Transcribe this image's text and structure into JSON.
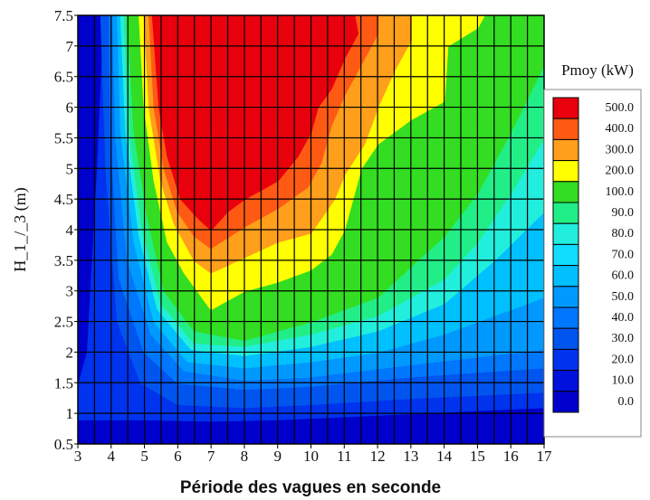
{
  "chart_data": {
    "type": "heatmap",
    "title": "",
    "xlabel": "Période des vagues en seconde",
    "ylabel": "H_1_/_3 (m)",
    "x_ticks": [
      3,
      4,
      5,
      6,
      7,
      8,
      9,
      10,
      11,
      12,
      13,
      14,
      15,
      16,
      17
    ],
    "y_ticks": [
      "0.5",
      "1",
      "1.5",
      "2",
      "2.5",
      "3",
      "3.5",
      "4",
      "4.5",
      "5",
      "5.5",
      "6",
      "6.5",
      "7",
      "7.5"
    ],
    "xlim": [
      3,
      17
    ],
    "ylim": [
      0.5,
      7.5
    ],
    "grid": true,
    "legend": {
      "title": "Pmoy (kW)",
      "placement": "right",
      "levels": [
        "500.0",
        "400.0",
        "300.0",
        "200.0",
        "100.0",
        "90.0",
        "80.0",
        "70.0",
        "60.0",
        "50.0",
        "40.0",
        "30.0",
        "20.0",
        "10.0",
        "0.0"
      ],
      "colors": [
        "#e8000c",
        "#ff5a14",
        "#ff9f1c",
        "#ffff00",
        "#33dd22",
        "#22ee88",
        "#22eedd",
        "#11ddff",
        "#00c0ff",
        "#0099ff",
        "#0077ff",
        "#0055ee",
        "#0033ee",
        "#0011dd",
        "#0000cc"
      ]
    },
    "contours": [
      {
        "level": "10.0",
        "color": "#0033ee",
        "points": [
          [
            3.0,
            0.9
          ],
          [
            5.0,
            0.9
          ],
          [
            7.0,
            0.88
          ],
          [
            9.0,
            0.9
          ],
          [
            11.0,
            0.95
          ],
          [
            13.0,
            1.0
          ],
          [
            15.0,
            1.05
          ],
          [
            17.0,
            1.1
          ],
          [
            17.0,
            7.5
          ],
          [
            3.8,
            7.5
          ],
          [
            3.6,
            5.0
          ],
          [
            3.3,
            2.0
          ],
          [
            3.0,
            1.4
          ]
        ]
      },
      {
        "level": "20.0",
        "color": "#0055ee",
        "points": [
          [
            3.7,
            7.5
          ],
          [
            3.85,
            5.0
          ],
          [
            4.2,
            2.5
          ],
          [
            4.9,
            1.5
          ],
          [
            6.0,
            1.15
          ],
          [
            8.0,
            1.1
          ],
          [
            10.0,
            1.15
          ],
          [
            13.0,
            1.25
          ],
          [
            17.0,
            1.35
          ],
          [
            17.0,
            7.5
          ]
        ]
      },
      {
        "level": "30.0",
        "color": "#0077ff",
        "points": [
          [
            3.95,
            7.5
          ],
          [
            4.0,
            5.5
          ],
          [
            4.25,
            3.2
          ],
          [
            5.0,
            2.0
          ],
          [
            6.0,
            1.5
          ],
          [
            8.0,
            1.4
          ],
          [
            10.0,
            1.45
          ],
          [
            13.0,
            1.6
          ],
          [
            17.0,
            1.75
          ],
          [
            17.0,
            7.5
          ]
        ]
      },
      {
        "level": "40.0",
        "color": "#0099ff",
        "points": [
          [
            4.05,
            7.5
          ],
          [
            4.15,
            5.5
          ],
          [
            4.5,
            3.5
          ],
          [
            5.2,
            2.3
          ],
          [
            6.2,
            1.7
          ],
          [
            8.0,
            1.55
          ],
          [
            10.0,
            1.6
          ],
          [
            13.0,
            1.8
          ],
          [
            17.0,
            2.05
          ],
          [
            17.0,
            7.5
          ]
        ]
      },
      {
        "level": "60.0",
        "color": "#00c0ff",
        "points": [
          [
            4.2,
            7.5
          ],
          [
            4.3,
            5.6
          ],
          [
            4.7,
            3.8
          ],
          [
            5.3,
            2.5
          ],
          [
            6.3,
            1.85
          ],
          [
            8.0,
            1.75
          ],
          [
            10.0,
            1.85
          ],
          [
            12.0,
            2.0
          ],
          [
            14.0,
            2.3
          ],
          [
            17.0,
            2.9
          ],
          [
            17.0,
            7.5
          ]
        ]
      },
      {
        "level": "80.0",
        "color": "#22eedd",
        "points": [
          [
            4.3,
            7.5
          ],
          [
            4.45,
            5.6
          ],
          [
            4.85,
            3.9
          ],
          [
            5.4,
            2.7
          ],
          [
            6.4,
            2.05
          ],
          [
            8.0,
            1.95
          ],
          [
            10.0,
            2.1
          ],
          [
            12.0,
            2.35
          ],
          [
            14.0,
            2.8
          ],
          [
            15.5,
            3.5
          ],
          [
            17.0,
            4.3
          ],
          [
            17.0,
            7.5
          ]
        ]
      },
      {
        "level": "90.0",
        "color": "#22ee88",
        "points": [
          [
            4.4,
            7.5
          ],
          [
            4.55,
            5.6
          ],
          [
            4.95,
            4.0
          ],
          [
            5.5,
            2.8
          ],
          [
            6.5,
            2.15
          ],
          [
            8.0,
            2.1
          ],
          [
            10.0,
            2.3
          ],
          [
            12.0,
            2.6
          ],
          [
            14.0,
            3.2
          ],
          [
            15.0,
            3.8
          ],
          [
            16.0,
            4.6
          ],
          [
            17.0,
            5.5
          ],
          [
            17.0,
            7.5
          ]
        ]
      },
      {
        "level": "100.0",
        "color": "#33dd22",
        "points": [
          [
            4.5,
            7.5
          ],
          [
            4.7,
            5.6
          ],
          [
            5.1,
            4.2
          ],
          [
            5.6,
            3.0
          ],
          [
            6.5,
            2.35
          ],
          [
            8.0,
            2.2
          ],
          [
            9.0,
            2.35
          ],
          [
            10.0,
            2.5
          ],
          [
            11.0,
            2.7
          ],
          [
            12.0,
            2.9
          ],
          [
            13.0,
            3.4
          ],
          [
            14.0,
            3.9
          ],
          [
            15.0,
            4.6
          ],
          [
            16.0,
            5.6
          ],
          [
            17.0,
            6.7
          ],
          [
            17.0,
            7.5
          ]
        ]
      },
      {
        "level": "200.0",
        "color": "#ffff00",
        "points": [
          [
            4.85,
            7.5
          ],
          [
            5.0,
            6.0
          ],
          [
            5.3,
            4.8
          ],
          [
            5.7,
            3.8
          ],
          [
            6.2,
            3.3
          ],
          [
            7.0,
            2.7
          ],
          [
            8.0,
            3.0
          ],
          [
            9.0,
            3.15
          ],
          [
            10.0,
            3.35
          ],
          [
            10.6,
            3.6
          ],
          [
            11.0,
            4.0
          ],
          [
            11.5,
            5.0
          ],
          [
            12.0,
            5.4
          ],
          [
            13.0,
            5.8
          ],
          [
            14.0,
            6.1
          ],
          [
            14.1,
            7.0
          ],
          [
            15.0,
            7.3
          ],
          [
            15.2,
            7.5
          ]
        ]
      },
      {
        "level": "300.0",
        "color": "#ff9f1c",
        "points": [
          [
            5.0,
            7.5
          ],
          [
            5.15,
            6.0
          ],
          [
            5.5,
            4.8
          ],
          [
            5.9,
            4.1
          ],
          [
            6.5,
            3.5
          ],
          [
            7.0,
            3.3
          ],
          [
            8.0,
            3.55
          ],
          [
            9.0,
            3.8
          ],
          [
            10.0,
            3.95
          ],
          [
            10.7,
            4.5
          ],
          [
            11.0,
            4.9
          ],
          [
            11.6,
            5.4
          ],
          [
            12.0,
            6.0
          ],
          [
            12.5,
            6.6
          ],
          [
            13.0,
            7.1
          ],
          [
            13.0,
            7.5
          ]
        ]
      },
      {
        "level": "400.0",
        "color": "#ff5a14",
        "points": [
          [
            5.15,
            7.5
          ],
          [
            5.3,
            6.0
          ],
          [
            5.6,
            5.0
          ],
          [
            6.0,
            4.3
          ],
          [
            6.5,
            3.9
          ],
          [
            7.0,
            3.7
          ],
          [
            8.0,
            4.05
          ],
          [
            9.0,
            4.35
          ],
          [
            9.9,
            4.7
          ],
          [
            10.3,
            5.1
          ],
          [
            10.6,
            5.7
          ],
          [
            11.0,
            6.2
          ],
          [
            11.5,
            6.7
          ],
          [
            12.0,
            7.2
          ],
          [
            12.0,
            7.5
          ]
        ]
      },
      {
        "level": "500.0",
        "color": "#e8000c",
        "points": [
          [
            5.25,
            7.5
          ],
          [
            5.45,
            6.0
          ],
          [
            5.7,
            5.2
          ],
          [
            6.1,
            4.5
          ],
          [
            6.6,
            4.2
          ],
          [
            7.0,
            4.0
          ],
          [
            7.5,
            4.3
          ],
          [
            8.0,
            4.5
          ],
          [
            9.0,
            4.8
          ],
          [
            9.6,
            5.2
          ],
          [
            10.0,
            5.6
          ],
          [
            10.2,
            6.0
          ],
          [
            10.6,
            6.3
          ],
          [
            11.0,
            6.8
          ],
          [
            11.4,
            7.2
          ],
          [
            11.3,
            7.5
          ]
        ]
      }
    ]
  }
}
